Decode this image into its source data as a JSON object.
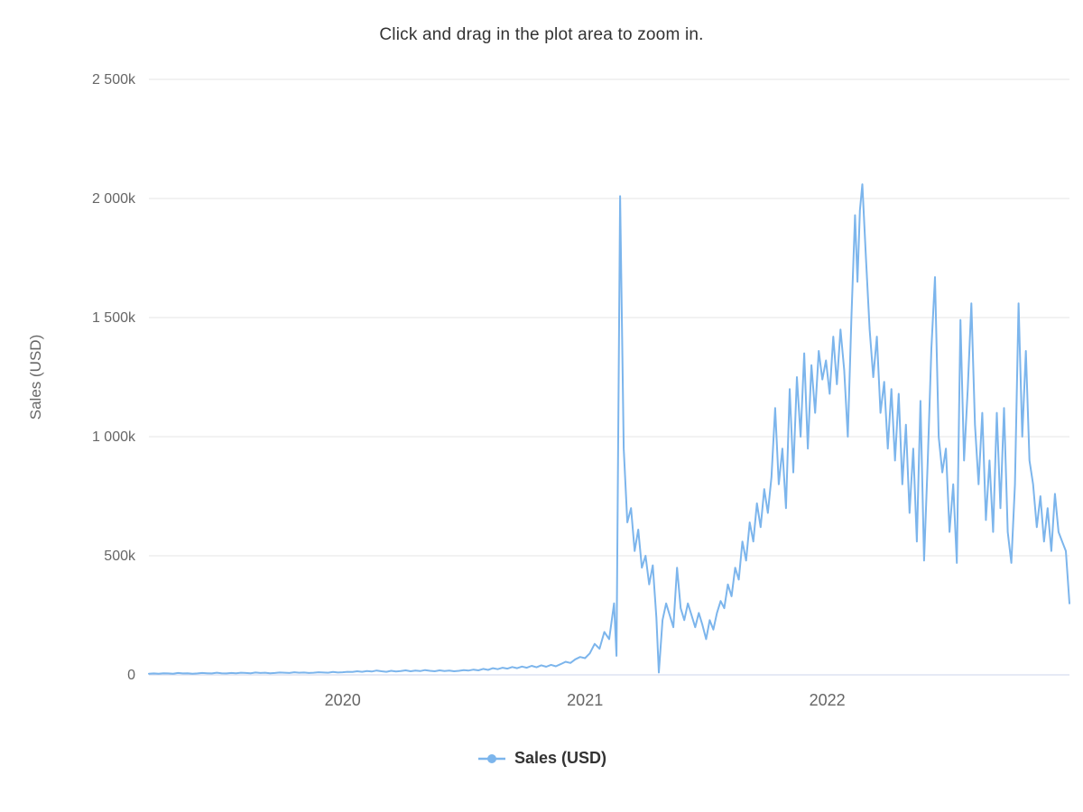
{
  "chart": {
    "title": "Click and drag in the plot area to zoom in.",
    "y_axis_title": "Sales (USD)",
    "legend_label": "Sales (USD)"
  },
  "chart_data": {
    "type": "line",
    "title": "Click and drag in the plot area to zoom in.",
    "xlabel": "",
    "ylabel": "Sales (USD)",
    "legend": [
      "Sales (USD)"
    ],
    "legend_position": "bottom",
    "grid": true,
    "series_color": "#7cb5ec",
    "grid_color": "#e6e6e6",
    "axis_line_color": "#ccd6eb",
    "x_range": [
      2019.2,
      2023.0
    ],
    "y_range_k": [
      0,
      2500
    ],
    "y_units": "thousands of USD (k)",
    "x_ticks": [
      {
        "value": 2020,
        "label": "2020"
      },
      {
        "value": 2021,
        "label": "2021"
      },
      {
        "value": 2022,
        "label": "2022"
      }
    ],
    "y_ticks": [
      {
        "value": 0,
        "label": "0"
      },
      {
        "value": 500,
        "label": "500k"
      },
      {
        "value": 1000,
        "label": "1 000k"
      },
      {
        "value": 1500,
        "label": "1 500k"
      },
      {
        "value": 2000,
        "label": "2 000k"
      },
      {
        "value": 2500,
        "label": "2 500k"
      }
    ],
    "series": [
      {
        "name": "Sales (USD)",
        "color": "#7cb5ec",
        "points": [
          [
            2019.2,
            5
          ],
          [
            2019.22,
            6
          ],
          [
            2019.24,
            5
          ],
          [
            2019.26,
            7
          ],
          [
            2019.28,
            6
          ],
          [
            2019.3,
            5
          ],
          [
            2019.32,
            8
          ],
          [
            2019.34,
            6
          ],
          [
            2019.36,
            7
          ],
          [
            2019.38,
            5
          ],
          [
            2019.4,
            6
          ],
          [
            2019.42,
            8
          ],
          [
            2019.44,
            7
          ],
          [
            2019.46,
            6
          ],
          [
            2019.48,
            9
          ],
          [
            2019.5,
            7
          ],
          [
            2019.52,
            6
          ],
          [
            2019.54,
            8
          ],
          [
            2019.56,
            7
          ],
          [
            2019.58,
            9
          ],
          [
            2019.6,
            8
          ],
          [
            2019.62,
            7
          ],
          [
            2019.64,
            10
          ],
          [
            2019.66,
            8
          ],
          [
            2019.68,
            9
          ],
          [
            2019.7,
            7
          ],
          [
            2019.72,
            8
          ],
          [
            2019.74,
            10
          ],
          [
            2019.76,
            9
          ],
          [
            2019.78,
            8
          ],
          [
            2019.8,
            11
          ],
          [
            2019.82,
            9
          ],
          [
            2019.84,
            10
          ],
          [
            2019.86,
            8
          ],
          [
            2019.88,
            9
          ],
          [
            2019.9,
            11
          ],
          [
            2019.92,
            10
          ],
          [
            2019.94,
            9
          ],
          [
            2019.96,
            12
          ],
          [
            2019.98,
            10
          ],
          [
            2020.0,
            11
          ],
          [
            2020.02,
            13
          ],
          [
            2020.04,
            12
          ],
          [
            2020.06,
            15
          ],
          [
            2020.08,
            13
          ],
          [
            2020.1,
            16
          ],
          [
            2020.12,
            14
          ],
          [
            2020.14,
            18
          ],
          [
            2020.16,
            15
          ],
          [
            2020.18,
            13
          ],
          [
            2020.2,
            17
          ],
          [
            2020.22,
            14
          ],
          [
            2020.24,
            16
          ],
          [
            2020.26,
            19
          ],
          [
            2020.28,
            15
          ],
          [
            2020.3,
            18
          ],
          [
            2020.32,
            16
          ],
          [
            2020.34,
            20
          ],
          [
            2020.36,
            17
          ],
          [
            2020.38,
            15
          ],
          [
            2020.4,
            19
          ],
          [
            2020.42,
            16
          ],
          [
            2020.44,
            18
          ],
          [
            2020.46,
            15
          ],
          [
            2020.48,
            17
          ],
          [
            2020.5,
            20
          ],
          [
            2020.52,
            18
          ],
          [
            2020.54,
            22
          ],
          [
            2020.56,
            19
          ],
          [
            2020.58,
            25
          ],
          [
            2020.6,
            21
          ],
          [
            2020.62,
            28
          ],
          [
            2020.64,
            24
          ],
          [
            2020.66,
            30
          ],
          [
            2020.68,
            26
          ],
          [
            2020.7,
            33
          ],
          [
            2020.72,
            28
          ],
          [
            2020.74,
            35
          ],
          [
            2020.76,
            30
          ],
          [
            2020.78,
            38
          ],
          [
            2020.8,
            32
          ],
          [
            2020.82,
            40
          ],
          [
            2020.84,
            34
          ],
          [
            2020.86,
            42
          ],
          [
            2020.88,
            36
          ],
          [
            2020.9,
            45
          ],
          [
            2020.92,
            55
          ],
          [
            2020.94,
            50
          ],
          [
            2020.96,
            65
          ],
          [
            2020.98,
            75
          ],
          [
            2021.0,
            70
          ],
          [
            2021.02,
            90
          ],
          [
            2021.04,
            130
          ],
          [
            2021.06,
            110
          ],
          [
            2021.08,
            180
          ],
          [
            2021.1,
            150
          ],
          [
            2021.12,
            300
          ],
          [
            2021.13,
            80
          ],
          [
            2021.145,
            2010
          ],
          [
            2021.16,
            950
          ],
          [
            2021.175,
            640
          ],
          [
            2021.19,
            700
          ],
          [
            2021.205,
            520
          ],
          [
            2021.22,
            610
          ],
          [
            2021.235,
            450
          ],
          [
            2021.25,
            500
          ],
          [
            2021.265,
            380
          ],
          [
            2021.28,
            460
          ],
          [
            2021.295,
            240
          ],
          [
            2021.305,
            10
          ],
          [
            2021.32,
            230
          ],
          [
            2021.335,
            300
          ],
          [
            2021.35,
            250
          ],
          [
            2021.365,
            200
          ],
          [
            2021.38,
            450
          ],
          [
            2021.395,
            280
          ],
          [
            2021.41,
            230
          ],
          [
            2021.425,
            300
          ],
          [
            2021.44,
            250
          ],
          [
            2021.455,
            200
          ],
          [
            2021.47,
            260
          ],
          [
            2021.485,
            210
          ],
          [
            2021.5,
            150
          ],
          [
            2021.515,
            230
          ],
          [
            2021.53,
            190
          ],
          [
            2021.545,
            260
          ],
          [
            2021.56,
            310
          ],
          [
            2021.575,
            280
          ],
          [
            2021.59,
            380
          ],
          [
            2021.605,
            330
          ],
          [
            2021.62,
            450
          ],
          [
            2021.635,
            400
          ],
          [
            2021.65,
            560
          ],
          [
            2021.665,
            480
          ],
          [
            2021.68,
            640
          ],
          [
            2021.695,
            560
          ],
          [
            2021.71,
            720
          ],
          [
            2021.725,
            620
          ],
          [
            2021.74,
            780
          ],
          [
            2021.755,
            680
          ],
          [
            2021.77,
            830
          ],
          [
            2021.785,
            1120
          ],
          [
            2021.8,
            800
          ],
          [
            2021.815,
            950
          ],
          [
            2021.83,
            700
          ],
          [
            2021.845,
            1200
          ],
          [
            2021.86,
            850
          ],
          [
            2021.875,
            1250
          ],
          [
            2021.89,
            1000
          ],
          [
            2021.905,
            1350
          ],
          [
            2021.92,
            950
          ],
          [
            2021.935,
            1300
          ],
          [
            2021.95,
            1100
          ],
          [
            2021.965,
            1360
          ],
          [
            2021.98,
            1240
          ],
          [
            2021.995,
            1320
          ],
          [
            2022.01,
            1180
          ],
          [
            2022.025,
            1420
          ],
          [
            2022.04,
            1220
          ],
          [
            2022.055,
            1450
          ],
          [
            2022.07,
            1280
          ],
          [
            2022.085,
            1000
          ],
          [
            2022.1,
            1500
          ],
          [
            2022.115,
            1930
          ],
          [
            2022.125,
            1650
          ],
          [
            2022.135,
            1950
          ],
          [
            2022.145,
            2060
          ],
          [
            2022.16,
            1750
          ],
          [
            2022.175,
            1450
          ],
          [
            2022.19,
            1250
          ],
          [
            2022.205,
            1420
          ],
          [
            2022.22,
            1100
          ],
          [
            2022.235,
            1230
          ],
          [
            2022.25,
            950
          ],
          [
            2022.265,
            1200
          ],
          [
            2022.28,
            900
          ],
          [
            2022.295,
            1180
          ],
          [
            2022.31,
            800
          ],
          [
            2022.325,
            1050
          ],
          [
            2022.34,
            680
          ],
          [
            2022.355,
            950
          ],
          [
            2022.37,
            560
          ],
          [
            2022.385,
            1150
          ],
          [
            2022.4,
            480
          ],
          [
            2022.415,
            900
          ],
          [
            2022.43,
            1370
          ],
          [
            2022.445,
            1670
          ],
          [
            2022.46,
            1000
          ],
          [
            2022.475,
            850
          ],
          [
            2022.49,
            950
          ],
          [
            2022.505,
            600
          ],
          [
            2022.52,
            800
          ],
          [
            2022.535,
            470
          ],
          [
            2022.55,
            1490
          ],
          [
            2022.565,
            900
          ],
          [
            2022.58,
            1200
          ],
          [
            2022.595,
            1560
          ],
          [
            2022.61,
            1050
          ],
          [
            2022.625,
            800
          ],
          [
            2022.64,
            1100
          ],
          [
            2022.655,
            650
          ],
          [
            2022.67,
            900
          ],
          [
            2022.685,
            600
          ],
          [
            2022.7,
            1100
          ],
          [
            2022.715,
            700
          ],
          [
            2022.73,
            1120
          ],
          [
            2022.745,
            600
          ],
          [
            2022.76,
            470
          ],
          [
            2022.775,
            800
          ],
          [
            2022.79,
            1560
          ],
          [
            2022.805,
            1000
          ],
          [
            2022.82,
            1360
          ],
          [
            2022.835,
            900
          ],
          [
            2022.85,
            800
          ],
          [
            2022.865,
            620
          ],
          [
            2022.88,
            750
          ],
          [
            2022.895,
            560
          ],
          [
            2022.91,
            700
          ],
          [
            2022.925,
            520
          ],
          [
            2022.94,
            760
          ],
          [
            2022.955,
            600
          ],
          [
            2022.97,
            560
          ],
          [
            2022.985,
            520
          ],
          [
            2023.0,
            300
          ]
        ]
      }
    ]
  }
}
